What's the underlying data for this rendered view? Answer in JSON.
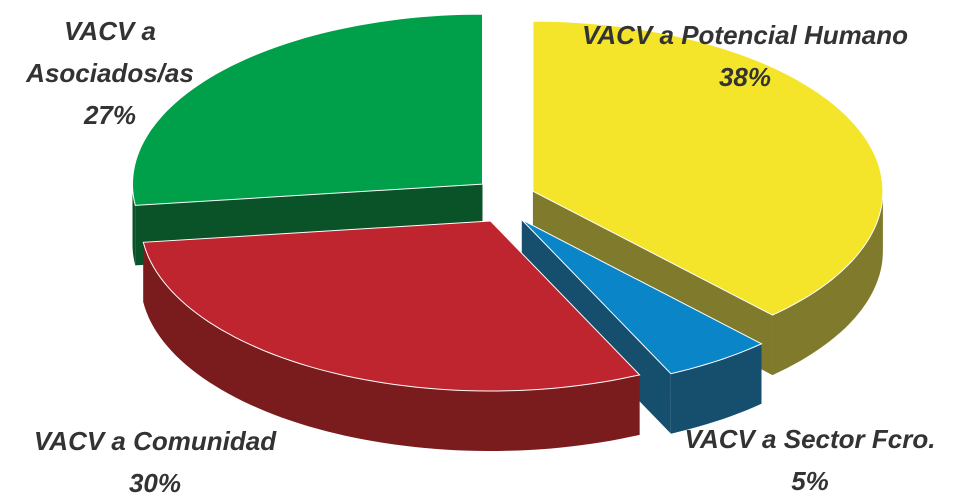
{
  "chart_data": {
    "type": "pie3d",
    "categories": [
      "VACV a Potencial Humano",
      "VACV a Sector Fcro.",
      "VACV a Comunidad",
      "VACV a Asociados/as"
    ],
    "values": [
      38,
      5,
      30,
      27
    ],
    "value_labels": [
      "38%",
      "5%",
      "30%",
      "27%"
    ],
    "colors": [
      "#f5e52a",
      "#0a86c8",
      "#be252e",
      "#00a04a"
    ],
    "side_colors": [
      "#7f7a2c",
      "#164f6e",
      "#7a1c1e",
      "#0a5228"
    ]
  }
}
